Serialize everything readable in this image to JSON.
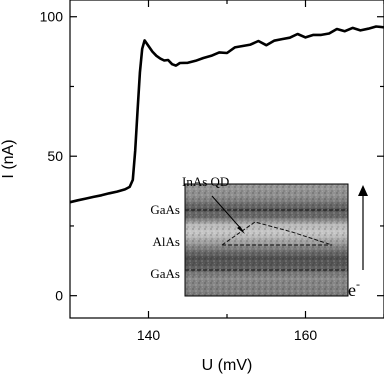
{
  "chart_data": {
    "type": "line",
    "xlabel": "U (mV)",
    "ylabel": "I (nA)",
    "xlim": [
      130,
      170
    ],
    "ylim": [
      -8,
      106
    ],
    "xticks": [
      140,
      150,
      160,
      170
    ],
    "xtick_labels": [
      "140",
      "",
      "160",
      ""
    ],
    "yticks": [
      0,
      25,
      50,
      75,
      100
    ],
    "ytick_labels": [
      "0",
      "",
      "50",
      "",
      "100"
    ],
    "grid": false,
    "legend": "none",
    "line_color": "#000000",
    "series": [
      {
        "x": [
          130,
          131,
          132,
          133,
          134,
          135,
          136,
          137,
          137.6,
          138.0,
          138.3,
          138.6,
          138.9,
          139.2,
          139.5,
          140.0,
          140.5,
          141.0,
          141.5,
          142.0,
          142.5,
          143.0,
          143.5,
          144.0,
          145.0,
          146.0,
          147.0,
          148.0,
          149.0,
          150.0,
          151.0,
          152.0,
          153.0,
          154.0,
          155.0,
          156.0,
          157.0,
          158.0,
          159.0,
          160.0,
          161.0,
          162.0,
          163.0,
          164.0,
          165.0,
          166.0,
          167.0,
          168.0,
          169.0,
          170.0
        ],
        "y": [
          33.5,
          34.2,
          34.8,
          35.4,
          36.0,
          36.7,
          37.3,
          38.1,
          39.0,
          41.5,
          52.0,
          66.0,
          80.0,
          88.5,
          91.5,
          89.5,
          87.5,
          86.0,
          85.0,
          84.3,
          84.5,
          83.0,
          82.5,
          83.4,
          83.5,
          84.2,
          85.2,
          86.0,
          87.2,
          87.0,
          89.0,
          89.5,
          90.0,
          91.3,
          89.8,
          91.4,
          92.0,
          92.5,
          93.8,
          92.6,
          93.5,
          93.5,
          94.0,
          95.6,
          94.8,
          96.0,
          95.1,
          95.7,
          96.5,
          96.2
        ]
      }
    ],
    "inset": {
      "labels_left": [
        "GaAs",
        "AlAs",
        "GaAs"
      ],
      "annotation": "InAs QD",
      "arrow_label": "e"
    }
  }
}
